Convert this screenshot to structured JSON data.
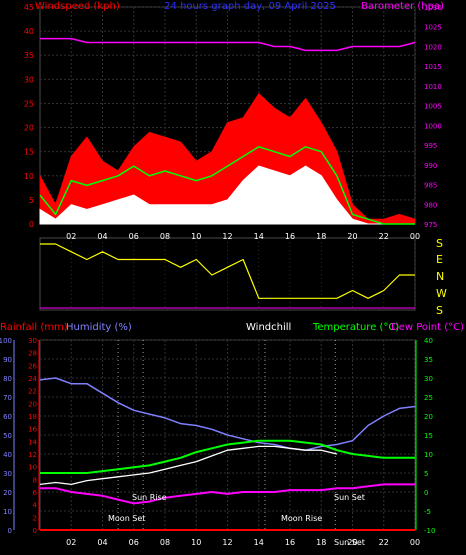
{
  "header": {
    "windspeed_label": "Windspeed (kph)",
    "title": "24 hours graph day, 09 April 2025",
    "barometer_label": "Barometer (hpa)"
  },
  "mid_header": {
    "rainfall_label": "Rainfall (mm)",
    "humidity_label": "Humidity (%)",
    "windchill_label": "Windchill",
    "temperature_label": "Temperature (°C)",
    "dewpoint_label": "Dew Point (°C)"
  },
  "compass": [
    "S",
    "E",
    "N",
    "W",
    "S"
  ],
  "time_ticks": [
    "02",
    "04",
    "06",
    "08",
    "10",
    "12",
    "14",
    "16",
    "18",
    "20",
    "22",
    "00"
  ],
  "astro": {
    "moon_set": "Moon Set",
    "sun_rise": "Sun Rise",
    "moon_rise": "Moon Rise",
    "sun_set": "Sun Set",
    "sun_set_bottom": "Sun Set"
  },
  "colors": {
    "wind_avg": "#ffffff",
    "wind_gust": "#ff0000",
    "wind_mean": "#00ff00",
    "barometer": "#ff00ff",
    "direction": "#ffff00",
    "humidity": "#8080ff",
    "temperature": "#00ff00",
    "dewpoint": "#ff00ff",
    "windchill": "#ffffff",
    "rainfall": "#ff0000",
    "axis_left_bottom": "#ff0000",
    "axis_mid_left": "#8080ff",
    "axis_right_bottom": "#00ff00"
  },
  "chart_data": [
    {
      "type": "line",
      "title": "24 hours graph day, 09 April 2025",
      "x": [
        0,
        1,
        2,
        3,
        4,
        5,
        6,
        7,
        8,
        9,
        10,
        11,
        12,
        13,
        14,
        15,
        16,
        17,
        18,
        19,
        20,
        21,
        22,
        23,
        24
      ],
      "ylabel": "Windspeed (kph)",
      "ylim": [
        0,
        45
      ],
      "yticks": [
        0,
        5,
        10,
        15,
        20,
        25,
        30,
        35,
        40,
        45
      ],
      "y2label": "Barometer (hpa)",
      "y2lim": [
        975,
        1030
      ],
      "y2ticks": [
        975,
        980,
        985,
        990,
        995,
        1000,
        1005,
        1010,
        1015,
        1020,
        1025,
        1030
      ],
      "series": [
        {
          "name": "Windspeed (kph)",
          "values": [
            10,
            4,
            14,
            18,
            13,
            11,
            16,
            19,
            18,
            17,
            13,
            15,
            21,
            22,
            27,
            24,
            22,
            26,
            21,
            15,
            4,
            1,
            1,
            2,
            1
          ]
        },
        {
          "values": [
            6,
            2,
            9,
            8,
            9,
            10,
            12,
            10,
            11,
            10,
            9,
            10,
            12,
            14,
            16,
            15,
            14,
            16,
            15,
            10,
            2,
            1,
            0,
            0,
            0
          ]
        },
        {
          "values": [
            3,
            1,
            4,
            3,
            4,
            5,
            6,
            4,
            4,
            4,
            4,
            4,
            5,
            9,
            12,
            11,
            10,
            12,
            10,
            5,
            1,
            0,
            0,
            0,
            0
          ]
        },
        {
          "name": "Barometer (hpa)",
          "axis": "right",
          "values": [
            1022,
            1022,
            1022,
            1021,
            1021,
            1021,
            1021,
            1021,
            1021,
            1021,
            1021,
            1021,
            1021,
            1021,
            1021,
            1020,
            1020,
            1019,
            1019,
            1019,
            1020,
            1020,
            1020,
            1020,
            1021
          ]
        }
      ]
    },
    {
      "type": "line",
      "x": [
        0,
        1,
        2,
        3,
        4,
        5,
        6,
        7,
        8,
        9,
        10,
        11,
        12,
        13,
        14,
        15,
        16,
        17,
        18,
        19,
        20,
        21,
        22,
        23,
        24
      ],
      "series": [
        {
          "values": [
            4,
            4,
            3.5,
            3,
            3.5,
            3,
            3,
            3,
            3,
            2.5,
            3,
            2,
            2.5,
            3,
            0.5,
            0.5,
            0.5,
            0.5,
            0.5,
            0.5,
            1,
            0.5,
            1,
            2,
            2
          ]
        }
      ]
    },
    {
      "type": "line",
      "x": [
        0,
        1,
        2,
        3,
        4,
        5,
        6,
        7,
        8,
        9,
        10,
        11,
        12,
        13,
        14,
        15,
        16,
        17,
        18,
        19,
        20,
        21,
        22,
        23,
        24
      ],
      "ylabel": "Rainfall (mm)",
      "ylim": [
        0,
        30
      ],
      "yticks": [
        0,
        2,
        4,
        6,
        8,
        10,
        12,
        14,
        16,
        18,
        20,
        22,
        24,
        26,
        28,
        30
      ],
      "y2label": "Humidity (%)",
      "y2lim": [
        0,
        100
      ],
      "y2ticks": [
        0,
        10,
        20,
        30,
        40,
        50,
        60,
        70,
        80,
        90,
        100
      ],
      "y3label": "Temperature (°C)",
      "y3lim": [
        -10,
        40
      ],
      "y3ticks": [
        -10,
        -5,
        0,
        5,
        10,
        15,
        20,
        25,
        30,
        35,
        40
      ],
      "series": [
        {
          "name": "Humidity (%)",
          "axis": "humidity",
          "values": [
            79,
            80,
            77,
            77,
            72,
            67,
            63,
            61,
            59,
            56,
            55,
            53,
            50,
            48,
            46,
            45,
            43,
            42,
            44,
            45,
            47,
            55,
            60,
            64,
            65
          ]
        },
        {
          "name": "Temperature (°C)",
          "axis": "temp",
          "values": [
            5,
            5,
            5,
            5,
            5.5,
            6,
            6.5,
            7,
            8,
            9,
            10.5,
            11.5,
            12.5,
            13,
            13.5,
            13.5,
            13.5,
            13,
            12.5,
            11,
            10,
            9.5,
            9,
            9,
            9
          ]
        },
        {
          "name": "Dew Point (°C)",
          "axis": "temp",
          "values": [
            1,
            1,
            0,
            -0.5,
            -1,
            -2,
            -3,
            -2.5,
            -1.5,
            -1,
            -0.5,
            0,
            -0.5,
            0,
            0,
            0,
            0.5,
            0.5,
            0.5,
            1,
            1,
            1.5,
            2,
            2,
            2
          ]
        },
        {
          "name": "Windchill",
          "axis": "temp",
          "values": [
            2,
            2.5,
            2,
            3,
            3.5,
            4,
            4.5,
            5,
            6,
            7,
            8,
            9.5,
            11,
            11.5,
            12,
            12,
            11.5,
            11,
            11,
            10,
            null,
            null,
            null,
            null,
            null
          ]
        },
        {
          "name": "Rainfall (mm)",
          "axis": "rain",
          "values": [
            0,
            0,
            0,
            0,
            0,
            0,
            0,
            0,
            0,
            0,
            0,
            0,
            0,
            0,
            0,
            0,
            0,
            0,
            0,
            0,
            0,
            0,
            0,
            0,
            0
          ]
        }
      ]
    }
  ]
}
